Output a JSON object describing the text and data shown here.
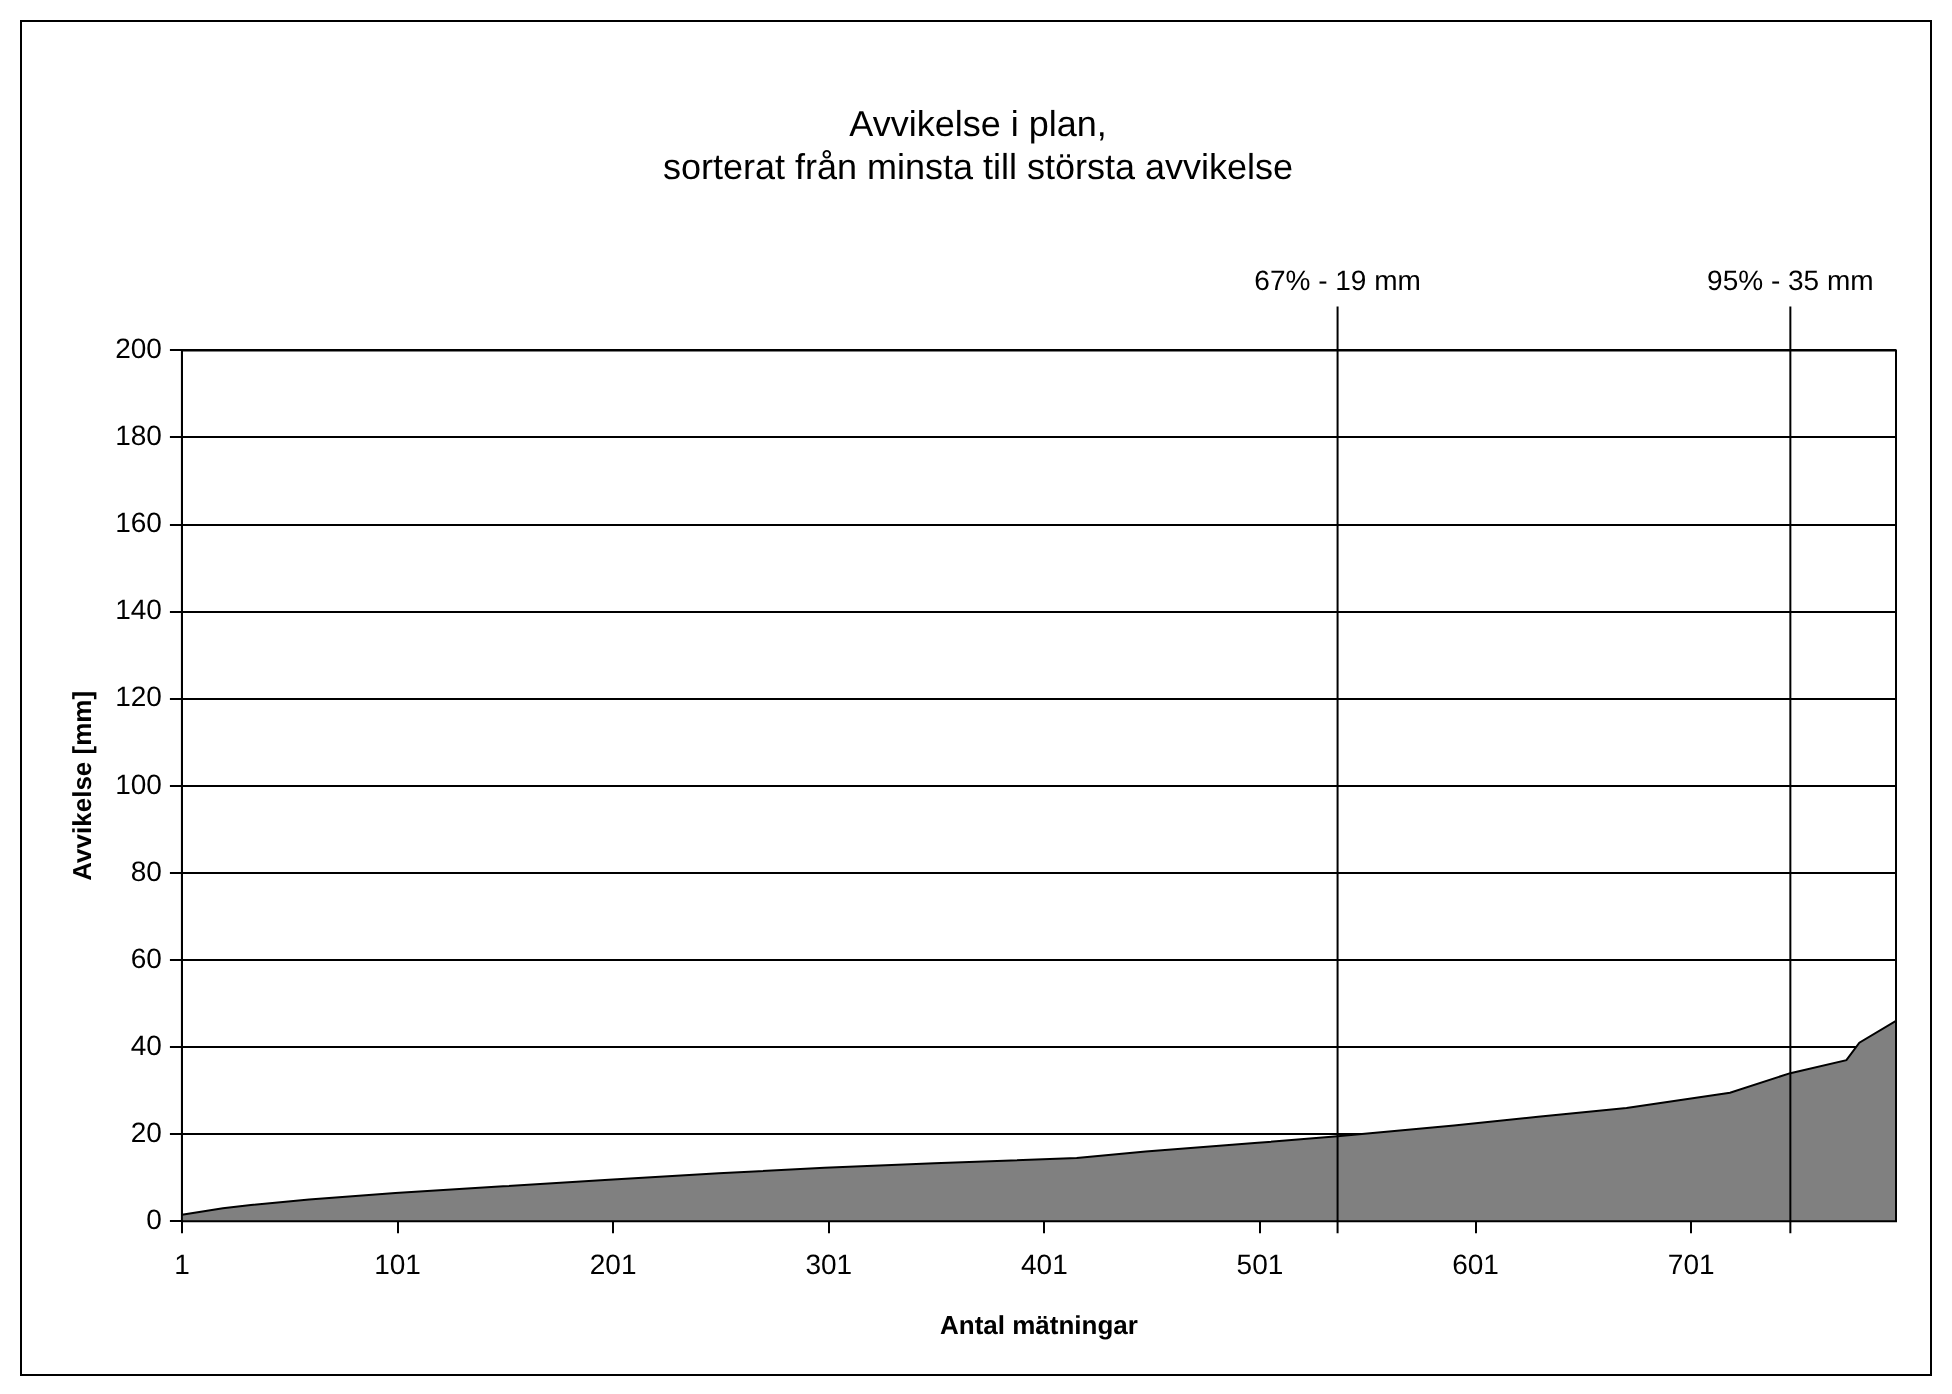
{
  "chart_data": {
    "type": "area",
    "title": "Avvikelse i plan,\nsorterat från minsta till största avvikelse",
    "xlabel": "Antal mätningar",
    "ylabel": "Avvikelse [mm]",
    "series": [
      {
        "color": "#808080",
        "x": [
          1,
          20,
          33,
          60,
          100,
          150,
          199,
          250,
          299,
          350,
          416,
          448,
          500,
          537,
          591,
          630,
          671,
          719,
          747,
          773,
          779,
          796
        ],
        "values": [
          1.5,
          3,
          3.7,
          5,
          6.5,
          8,
          9.5,
          11,
          12.3,
          13.3,
          14.5,
          16,
          18,
          19.5,
          22,
          24,
          26,
          29.5,
          34,
          37,
          41,
          46
        ]
      }
    ],
    "xlim": [
      1,
      796
    ],
    "xticks": [
      1,
      101,
      201,
      301,
      401,
      501,
      601,
      701
    ],
    "ylim": [
      0,
      200
    ],
    "yticks": [
      0,
      20,
      40,
      60,
      80,
      100,
      120,
      140,
      160,
      180,
      200
    ],
    "grid": "y",
    "legend": false,
    "marker": "none",
    "ref_lines": [
      {
        "axis": "x",
        "value": 537,
        "label": "67% - 19 mm"
      },
      {
        "axis": "x",
        "value": 747,
        "label": "95% - 35 mm"
      }
    ]
  }
}
